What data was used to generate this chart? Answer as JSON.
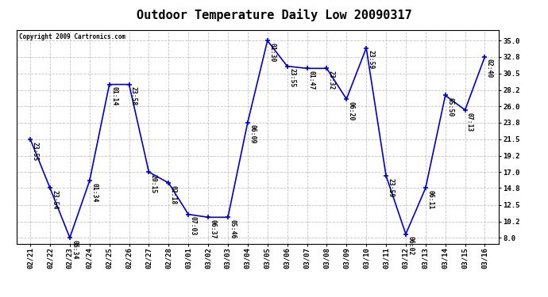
{
  "title": "Outdoor Temperature Daily Low 20090317",
  "copyright": "Copyright 2009 Cartronics.com",
  "line_color": "#0000CC",
  "bg_color": "#ffffff",
  "grid_color": "#bbbbbb",
  "data_points": [
    {
      "date": "02/21",
      "time": "23:55",
      "temp": 21.5
    },
    {
      "date": "02/22",
      "time": "23:54",
      "temp": 14.8
    },
    {
      "date": "02/23",
      "time": "06:34",
      "temp": 8.0
    },
    {
      "date": "02/24",
      "time": "01:34",
      "temp": 15.8
    },
    {
      "date": "02/25",
      "time": "01:14",
      "temp": 29.0
    },
    {
      "date": "02/26",
      "time": "23:58",
      "temp": 29.0
    },
    {
      "date": "02/27",
      "time": "20:15",
      "temp": 17.0
    },
    {
      "date": "02/28",
      "time": "02:18",
      "temp": 15.5
    },
    {
      "date": "03/01",
      "time": "07:03",
      "temp": 11.2
    },
    {
      "date": "03/02",
      "time": "06:37",
      "temp": 10.8
    },
    {
      "date": "03/03",
      "time": "05:46",
      "temp": 10.8
    },
    {
      "date": "03/04",
      "time": "06:09",
      "temp": 23.8
    },
    {
      "date": "03/05",
      "time": "01:30",
      "temp": 35.0
    },
    {
      "date": "03/06",
      "time": "23:55",
      "temp": 31.5
    },
    {
      "date": "03/07",
      "time": "01:47",
      "temp": 31.2
    },
    {
      "date": "03/08",
      "time": "23:32",
      "temp": 31.2
    },
    {
      "date": "03/09",
      "time": "06:20",
      "temp": 27.0
    },
    {
      "date": "03/10",
      "time": "23:59",
      "temp": 34.0
    },
    {
      "date": "03/11",
      "time": "23:59",
      "temp": 16.5
    },
    {
      "date": "03/12",
      "time": "06:02",
      "temp": 8.5
    },
    {
      "date": "03/13",
      "time": "06:11",
      "temp": 14.8
    },
    {
      "date": "03/14",
      "time": "05:50",
      "temp": 27.5
    },
    {
      "date": "03/15",
      "time": "07:13",
      "temp": 25.5
    },
    {
      "date": "03/16",
      "time": "02:40",
      "temp": 32.8
    }
  ],
  "yticks": [
    8.0,
    10.2,
    12.5,
    14.8,
    17.0,
    19.2,
    21.5,
    23.8,
    26.0,
    28.2,
    30.5,
    32.8,
    35.0
  ],
  "ylim": [
    7.2,
    36.5
  ],
  "title_fontsize": 11,
  "tick_fontsize": 6.5,
  "label_fontsize": 5.8
}
